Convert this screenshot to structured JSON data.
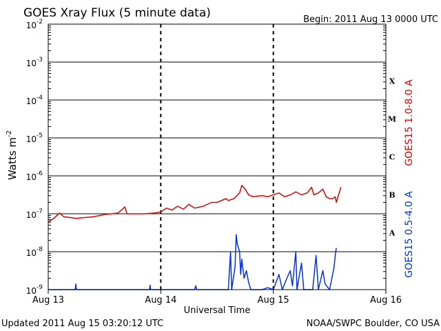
{
  "chart_data": {
    "type": "line",
    "title": "GOES Xray Flux (5 minute data)",
    "begin_label": "Begin:  2011 Aug 13 0000 UTC",
    "xlabel": "Universal Time",
    "ylabel": "Watts m",
    "ylabel_sup": "-2",
    "footer_left": "Updated 2011 Aug 15 03:20:12 UTC",
    "footer_right": "NOAA/SWPC Boulder, CO USA",
    "x_unit": "days since 2011 Aug 13 00:00 UTC",
    "xlim": [
      0,
      3
    ],
    "x_ticks": [
      {
        "value": 0,
        "label": "Aug 13"
      },
      {
        "value": 1,
        "label": "Aug 14"
      },
      {
        "value": 2,
        "label": "Aug 15"
      },
      {
        "value": 3,
        "label": "Aug 16"
      }
    ],
    "y_scale": "log",
    "ylim_exp": [
      -9,
      -2
    ],
    "y_ticks": [
      {
        "exp": -2,
        "label": "10",
        "sup": "-2"
      },
      {
        "exp": -3,
        "label": "10",
        "sup": "-3"
      },
      {
        "exp": -4,
        "label": "10",
        "sup": "-4"
      },
      {
        "exp": -5,
        "label": "10",
        "sup": "-5"
      },
      {
        "exp": -6,
        "label": "10",
        "sup": "-6"
      },
      {
        "exp": -7,
        "label": "10",
        "sup": "-7"
      },
      {
        "exp": -8,
        "label": "10",
        "sup": "-8"
      },
      {
        "exp": -9,
        "label": "10",
        "sup": "-9"
      }
    ],
    "flare_classes": [
      {
        "label": "X",
        "exp": -3.5
      },
      {
        "label": "M",
        "exp": -4.5
      },
      {
        "label": "C",
        "exp": -5.5
      },
      {
        "label": "B",
        "exp": -6.5
      },
      {
        "label": "A",
        "exp": -7.5
      }
    ],
    "series": [
      {
        "name": "GOES15 1.0-8.0 A",
        "color": "#e00000",
        "points": [
          [
            0.0,
            -7.22
          ],
          [
            0.05,
            -7.12
          ],
          [
            0.1,
            -6.98
          ],
          [
            0.14,
            -7.08
          ],
          [
            0.25,
            -7.12
          ],
          [
            0.4,
            -7.08
          ],
          [
            0.5,
            -7.02
          ],
          [
            0.62,
            -6.98
          ],
          [
            0.68,
            -6.82
          ],
          [
            0.7,
            -7.0
          ],
          [
            0.85,
            -7.0
          ],
          [
            0.95,
            -6.98
          ],
          [
            1.0,
            -6.95
          ],
          [
            1.05,
            -6.85
          ],
          [
            1.1,
            -6.9
          ],
          [
            1.15,
            -6.8
          ],
          [
            1.2,
            -6.88
          ],
          [
            1.25,
            -6.75
          ],
          [
            1.3,
            -6.85
          ],
          [
            1.38,
            -6.8
          ],
          [
            1.45,
            -6.7
          ],
          [
            1.5,
            -6.7
          ],
          [
            1.58,
            -6.6
          ],
          [
            1.6,
            -6.65
          ],
          [
            1.65,
            -6.6
          ],
          [
            1.7,
            -6.45
          ],
          [
            1.72,
            -6.25
          ],
          [
            1.75,
            -6.35
          ],
          [
            1.78,
            -6.5
          ],
          [
            1.82,
            -6.55
          ],
          [
            1.9,
            -6.52
          ],
          [
            1.95,
            -6.55
          ],
          [
            2.0,
            -6.5
          ],
          [
            2.05,
            -6.45
          ],
          [
            2.1,
            -6.55
          ],
          [
            2.15,
            -6.5
          ],
          [
            2.2,
            -6.42
          ],
          [
            2.25,
            -6.5
          ],
          [
            2.3,
            -6.45
          ],
          [
            2.34,
            -6.3
          ],
          [
            2.36,
            -6.5
          ],
          [
            2.4,
            -6.45
          ],
          [
            2.44,
            -6.35
          ],
          [
            2.47,
            -6.55
          ],
          [
            2.5,
            -6.6
          ],
          [
            2.53,
            -6.6
          ],
          [
            2.55,
            -6.55
          ],
          [
            2.56,
            -6.7
          ],
          [
            2.58,
            -6.5
          ],
          [
            2.6,
            -6.3
          ]
        ]
      },
      {
        "name": "GOES15 0.5-4.0 A",
        "color": "#0030e0",
        "points": [
          [
            0.0,
            -9.0
          ],
          [
            0.24,
            -9.0
          ],
          [
            0.245,
            -8.85
          ],
          [
            0.25,
            -9.0
          ],
          [
            0.9,
            -9.0
          ],
          [
            0.905,
            -8.88
          ],
          [
            0.91,
            -9.0
          ],
          [
            1.3,
            -9.0
          ],
          [
            1.31,
            -8.9
          ],
          [
            1.32,
            -9.0
          ],
          [
            1.6,
            -9.0
          ],
          [
            1.62,
            -8.0
          ],
          [
            1.63,
            -9.0
          ],
          [
            1.66,
            -8.4
          ],
          [
            1.67,
            -7.55
          ],
          [
            1.68,
            -7.8
          ],
          [
            1.7,
            -8.0
          ],
          [
            1.71,
            -8.6
          ],
          [
            1.72,
            -8.2
          ],
          [
            1.74,
            -8.7
          ],
          [
            1.76,
            -8.5
          ],
          [
            1.78,
            -8.8
          ],
          [
            1.8,
            -9.0
          ],
          [
            1.9,
            -9.0
          ],
          [
            1.95,
            -8.95
          ],
          [
            2.0,
            -9.0
          ],
          [
            2.05,
            -8.6
          ],
          [
            2.08,
            -9.0
          ],
          [
            2.12,
            -8.7
          ],
          [
            2.15,
            -8.5
          ],
          [
            2.17,
            -8.9
          ],
          [
            2.2,
            -8.0
          ],
          [
            2.21,
            -9.0
          ],
          [
            2.25,
            -8.3
          ],
          [
            2.27,
            -9.0
          ],
          [
            2.35,
            -9.0
          ],
          [
            2.38,
            -8.1
          ],
          [
            2.4,
            -9.0
          ],
          [
            2.44,
            -8.5
          ],
          [
            2.46,
            -8.85
          ],
          [
            2.5,
            -9.0
          ],
          [
            2.52,
            -8.7
          ],
          [
            2.54,
            -8.4
          ],
          [
            2.55,
            -8.1
          ],
          [
            2.56,
            -7.9
          ]
        ]
      }
    ]
  }
}
